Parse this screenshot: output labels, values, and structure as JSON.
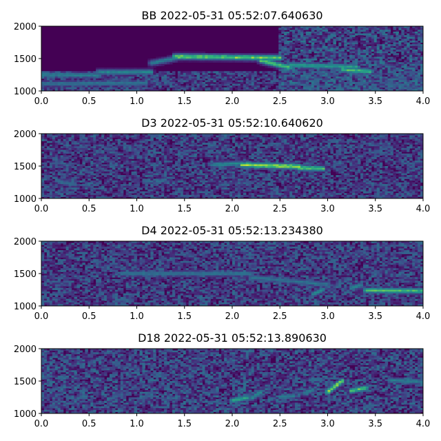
{
  "chart_data": [
    {
      "type": "heatmap",
      "title": "BB 2022-05-31 05:52:07.640630",
      "xlim": [
        0.0,
        4.0
      ],
      "ylim": [
        1000,
        2000
      ],
      "xticks": [
        "0.0",
        "0.5",
        "1.0",
        "1.5",
        "2.0",
        "2.5",
        "3.0",
        "3.5",
        "4.0"
      ],
      "yticks": [
        "1000",
        "1500",
        "2000"
      ],
      "colormap": "viridis",
      "traces": [
        {
          "x": [
            0.0,
            0.6
          ],
          "y": [
            1250,
            1240
          ],
          "intensity": 0.55
        },
        {
          "x": [
            0.0,
            1.1
          ],
          "y": [
            1110,
            1120
          ],
          "intensity": 0.5
        },
        {
          "x": [
            0.6,
            1.15
          ],
          "y": [
            1290,
            1290
          ],
          "intensity": 0.6
        },
        {
          "x": [
            1.15,
            1.4
          ],
          "y": [
            1430,
            1500
          ],
          "intensity": 0.55
        },
        {
          "x": [
            1.4,
            2.5
          ],
          "y": [
            1530,
            1510
          ],
          "intensity": 0.9
        },
        {
          "x": [
            2.3,
            2.6
          ],
          "y": [
            1470,
            1360
          ],
          "intensity": 0.85
        },
        {
          "x": [
            2.6,
            3.3
          ],
          "y": [
            1400,
            1370
          ],
          "intensity": 0.7
        },
        {
          "x": [
            3.15,
            3.45
          ],
          "y": [
            1330,
            1300
          ],
          "intensity": 0.8
        }
      ],
      "noise_blocks": [
        {
          "x": [
            2.5,
            4.0
          ],
          "y": [
            1000,
            2000
          ],
          "intensity": 0.35
        },
        {
          "x": [
            0.0,
            4.0
          ],
          "y": [
            1000,
            1300
          ],
          "intensity": 0.3
        }
      ]
    },
    {
      "type": "heatmap",
      "title": "D3 2022-05-31 05:52:10.640620",
      "xlim": [
        0.0,
        4.0
      ],
      "ylim": [
        1000,
        2000
      ],
      "xticks": [
        "0.0",
        "0.5",
        "1.0",
        "1.5",
        "2.0",
        "2.5",
        "3.0",
        "3.5",
        "4.0"
      ],
      "yticks": [
        "1000",
        "1500",
        "2000"
      ],
      "colormap": "viridis",
      "traces": [
        {
          "x": [
            1.8,
            2.1
          ],
          "y": [
            1520,
            1540
          ],
          "intensity": 0.6
        },
        {
          "x": [
            2.1,
            2.7
          ],
          "y": [
            1520,
            1490
          ],
          "intensity": 0.95
        },
        {
          "x": [
            2.7,
            2.95
          ],
          "y": [
            1470,
            1460
          ],
          "intensity": 0.85
        },
        {
          "x": [
            0.2,
            0.35
          ],
          "y": [
            1250,
            1220
          ],
          "intensity": 0.45
        },
        {
          "x": [
            1.2,
            1.3
          ],
          "y": [
            1250,
            1290
          ],
          "intensity": 0.45
        }
      ],
      "noise_blocks": [
        {
          "x": [
            0.0,
            4.0
          ],
          "y": [
            1000,
            2000
          ],
          "intensity": 0.3
        }
      ]
    },
    {
      "type": "heatmap",
      "title": "D4 2022-05-31 05:52:13.234380",
      "xlim": [
        0.0,
        4.0
      ],
      "ylim": [
        1000,
        2000
      ],
      "xticks": [
        "0.0",
        "0.5",
        "1.0",
        "1.5",
        "2.0",
        "2.5",
        "3.0",
        "3.5",
        "4.0"
      ],
      "yticks": [
        "1000",
        "1500",
        "2000"
      ],
      "colormap": "viridis",
      "traces": [
        {
          "x": [
            0.85,
            2.2
          ],
          "y": [
            1500,
            1500
          ],
          "intensity": 0.5
        },
        {
          "x": [
            2.2,
            3.0
          ],
          "y": [
            1440,
            1330
          ],
          "intensity": 0.5
        },
        {
          "x": [
            3.4,
            4.0
          ],
          "y": [
            1240,
            1230
          ],
          "intensity": 0.8
        },
        {
          "x": [
            2.85,
            2.95
          ],
          "y": [
            1180,
            1250
          ],
          "intensity": 0.6
        },
        {
          "x": [
            3.25,
            3.35
          ],
          "y": [
            1280,
            1320
          ],
          "intensity": 0.6
        }
      ],
      "noise_blocks": [
        {
          "x": [
            0.0,
            4.0
          ],
          "y": [
            1000,
            2000
          ],
          "intensity": 0.3
        }
      ]
    },
    {
      "type": "heatmap",
      "title": "D18 2022-05-31 05:52:13.890630",
      "xlim": [
        0.0,
        4.0
      ],
      "ylim": [
        1000,
        2000
      ],
      "xticks": [
        "0.0",
        "0.5",
        "1.0",
        "1.5",
        "2.0",
        "2.5",
        "3.0",
        "3.5",
        "4.0"
      ],
      "yticks": [
        "1000",
        "1500",
        "2000"
      ],
      "colormap": "viridis",
      "traces": [
        {
          "x": [
            2.0,
            2.15
          ],
          "y": [
            1200,
            1240
          ],
          "intensity": 0.75
        },
        {
          "x": [
            2.2,
            2.3
          ],
          "y": [
            1230,
            1330
          ],
          "intensity": 0.6
        },
        {
          "x": [
            2.5,
            2.65
          ],
          "y": [
            1250,
            1270
          ],
          "intensity": 0.55
        },
        {
          "x": [
            2.75,
            2.85
          ],
          "y": [
            1310,
            1360
          ],
          "intensity": 0.55
        },
        {
          "x": [
            3.0,
            3.15
          ],
          "y": [
            1330,
            1500
          ],
          "intensity": 0.9
        },
        {
          "x": [
            3.25,
            3.4
          ],
          "y": [
            1350,
            1390
          ],
          "intensity": 0.85
        },
        {
          "x": [
            3.65,
            4.0
          ],
          "y": [
            1510,
            1490
          ],
          "intensity": 0.55
        },
        {
          "x": [
            0.35,
            0.45
          ],
          "y": [
            1200,
            1280
          ],
          "intensity": 0.4
        },
        {
          "x": [
            0.7,
            0.85
          ],
          "y": [
            1210,
            1300
          ],
          "intensity": 0.4
        },
        {
          "x": [
            1.05,
            1.15
          ],
          "y": [
            1230,
            1280
          ],
          "intensity": 0.4
        },
        {
          "x": [
            1.3,
            1.45
          ],
          "y": [
            1220,
            1240
          ],
          "intensity": 0.35
        }
      ],
      "noise_blocks": [
        {
          "x": [
            0.0,
            4.0
          ],
          "y": [
            1000,
            2000
          ],
          "intensity": 0.32
        }
      ]
    }
  ]
}
